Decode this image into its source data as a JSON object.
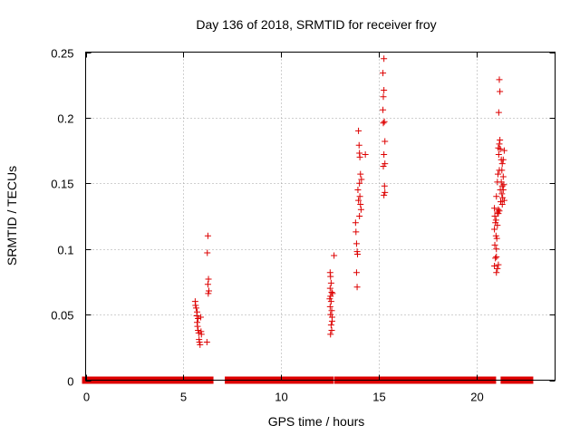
{
  "chart_data": {
    "type": "scatter",
    "title": "Day 136 of 2018, SRMTID for receiver froy",
    "xlabel": "GPS time / hours",
    "ylabel": "SRMTID / TECUs",
    "xlim": [
      0,
      24
    ],
    "ylim": [
      0,
      0.25
    ],
    "x_ticks": [
      0,
      5,
      10,
      15,
      20
    ],
    "x_tick_labels": [
      "0",
      "5",
      "10",
      "15",
      "20"
    ],
    "y_ticks": [
      0,
      0.05,
      0.1,
      0.15,
      0.2,
      0.25
    ],
    "y_tick_labels": [
      "0",
      "0.05",
      "0.1",
      "0.15",
      "0.2",
      "0.25"
    ],
    "grid": true,
    "marker": "+",
    "color": "#dd0000",
    "zero_segments": [
      [
        0.0,
        5.9
      ],
      [
        6.1,
        6.35
      ],
      [
        7.3,
        12.5
      ],
      [
        12.9,
        14.1
      ],
      [
        14.3,
        15.1
      ],
      [
        15.4,
        20.8
      ],
      [
        21.4,
        22.7
      ]
    ],
    "series": [
      {
        "name": "SRMTID",
        "points": [
          [
            5.6,
            0.06
          ],
          [
            5.62,
            0.057
          ],
          [
            5.65,
            0.055
          ],
          [
            5.68,
            0.049
          ],
          [
            5.7,
            0.044
          ],
          [
            5.72,
            0.041
          ],
          [
            5.75,
            0.038
          ],
          [
            5.78,
            0.036
          ],
          [
            5.8,
            0.031
          ],
          [
            5.82,
            0.029
          ],
          [
            5.85,
            0.027
          ],
          [
            5.88,
            0.048
          ],
          [
            5.9,
            0.037
          ],
          [
            5.92,
            0.035
          ],
          [
            5.75,
            0.047
          ],
          [
            5.7,
            0.052
          ],
          [
            6.25,
            0.11
          ],
          [
            6.22,
            0.097
          ],
          [
            6.28,
            0.077
          ],
          [
            6.25,
            0.073
          ],
          [
            6.3,
            0.068
          ],
          [
            6.27,
            0.066
          ],
          [
            6.2,
            0.029
          ],
          [
            12.5,
            0.082
          ],
          [
            12.52,
            0.079
          ],
          [
            12.55,
            0.074
          ],
          [
            12.5,
            0.07
          ],
          [
            12.58,
            0.067
          ],
          [
            12.52,
            0.064
          ],
          [
            12.55,
            0.06
          ],
          [
            12.5,
            0.056
          ],
          [
            12.58,
            0.053
          ],
          [
            12.52,
            0.05
          ],
          [
            12.6,
            0.045
          ],
          [
            12.55,
            0.042
          ],
          [
            12.58,
            0.038
          ],
          [
            12.52,
            0.035
          ],
          [
            12.7,
            0.095
          ],
          [
            12.62,
            0.066
          ],
          [
            12.6,
            0.048
          ],
          [
            12.48,
            0.062
          ],
          [
            13.8,
            0.12
          ],
          [
            13.82,
            0.113
          ],
          [
            13.85,
            0.104
          ],
          [
            13.88,
            0.098
          ],
          [
            13.9,
            0.096
          ],
          [
            13.85,
            0.082
          ],
          [
            13.88,
            0.071
          ],
          [
            13.95,
            0.19
          ],
          [
            13.98,
            0.179
          ],
          [
            14.0,
            0.173
          ],
          [
            14.02,
            0.17
          ],
          [
            14.05,
            0.157
          ],
          [
            14.1,
            0.153
          ],
          [
            14.0,
            0.15
          ],
          [
            13.92,
            0.145
          ],
          [
            14.02,
            0.14
          ],
          [
            13.95,
            0.137
          ],
          [
            14.05,
            0.134
          ],
          [
            14.08,
            0.13
          ],
          [
            14.0,
            0.125
          ],
          [
            14.3,
            0.172
          ],
          [
            15.25,
            0.245
          ],
          [
            15.2,
            0.234
          ],
          [
            15.25,
            0.221
          ],
          [
            15.22,
            0.216
          ],
          [
            15.2,
            0.206
          ],
          [
            15.27,
            0.197
          ],
          [
            15.22,
            0.196
          ],
          [
            15.3,
            0.182
          ],
          [
            15.25,
            0.172
          ],
          [
            15.3,
            0.165
          ],
          [
            15.22,
            0.163
          ],
          [
            15.28,
            0.148
          ],
          [
            15.3,
            0.143
          ],
          [
            15.25,
            0.141
          ],
          [
            20.9,
            0.131
          ],
          [
            20.92,
            0.125
          ],
          [
            20.95,
            0.12
          ],
          [
            20.9,
            0.115
          ],
          [
            20.98,
            0.11
          ],
          [
            20.92,
            0.103
          ],
          [
            21.0,
            0.1
          ],
          [
            20.95,
            0.093
          ],
          [
            20.9,
            0.087
          ],
          [
            21.0,
            0.082
          ],
          [
            21.05,
            0.085
          ],
          [
            21.1,
            0.088
          ],
          [
            21.0,
            0.094
          ],
          [
            21.02,
            0.108
          ],
          [
            20.98,
            0.122
          ],
          [
            21.05,
            0.128
          ],
          [
            21.1,
            0.127
          ],
          [
            21.15,
            0.129
          ],
          [
            21.0,
            0.14
          ],
          [
            21.05,
            0.151
          ],
          [
            21.08,
            0.157
          ],
          [
            21.15,
            0.16
          ],
          [
            21.12,
            0.172
          ],
          [
            21.1,
            0.177
          ],
          [
            21.15,
            0.18
          ],
          [
            21.18,
            0.183
          ],
          [
            21.2,
            0.176
          ],
          [
            21.25,
            0.168
          ],
          [
            21.3,
            0.165
          ],
          [
            21.28,
            0.16
          ],
          [
            21.35,
            0.155
          ],
          [
            21.25,
            0.151
          ],
          [
            21.3,
            0.148
          ],
          [
            21.35,
            0.145
          ],
          [
            21.28,
            0.142
          ],
          [
            21.32,
            0.139
          ],
          [
            21.4,
            0.137
          ],
          [
            21.22,
            0.136
          ],
          [
            21.3,
            0.134
          ],
          [
            21.38,
            0.149
          ],
          [
            21.15,
            0.229
          ],
          [
            21.18,
            0.22
          ],
          [
            21.12,
            0.204
          ],
          [
            21.4,
            0.175
          ],
          [
            21.35,
            0.168
          ],
          [
            21.2,
            0.145
          ],
          [
            21.05,
            0.118
          ],
          [
            21.1,
            0.13
          ]
        ]
      }
    ]
  }
}
